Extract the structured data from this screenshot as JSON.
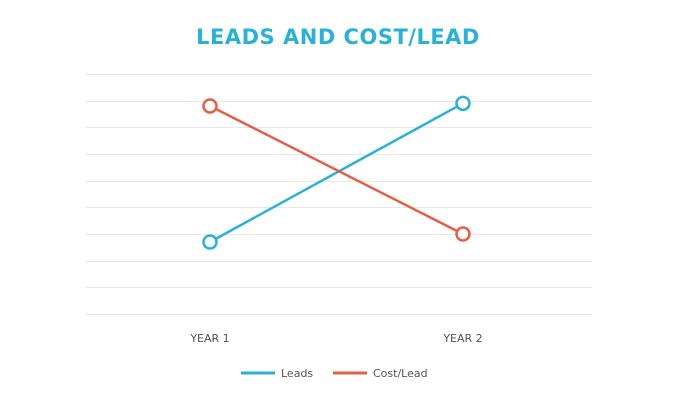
{
  "chart_data": {
    "type": "line",
    "title": "LEADS AND COST/LEAD",
    "categories": [
      "YEAR 1",
      "YEAR 2"
    ],
    "series": [
      {
        "name": "Leads",
        "values": [
          2.7,
          7.9
        ],
        "color": "#2bb1d6"
      },
      {
        "name": "Cost/Lead",
        "values": [
          7.8,
          3.0
        ],
        "color": "#e65e44"
      }
    ],
    "ylim": [
      0,
      9
    ],
    "grid": true,
    "legend_position": "bottom-center",
    "title_color": "#2bb1d6"
  }
}
